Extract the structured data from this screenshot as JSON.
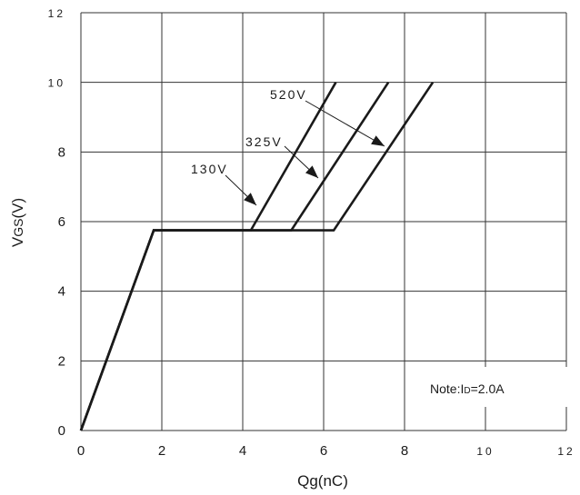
{
  "chart_data": {
    "type": "line",
    "xlabel": "Qg(nC)",
    "ylabel_main": "V",
    "ylabel_sub": "GS",
    "ylabel_tail": "(V)",
    "xlim": [
      0,
      12
    ],
    "ylim": [
      0,
      12
    ],
    "x_ticks": [
      "0",
      "2",
      "4",
      "6",
      "8",
      "10",
      "12"
    ],
    "y_ticks": [
      "0",
      "2",
      "4",
      "6",
      "8",
      "10",
      "12"
    ],
    "grid": true,
    "series": [
      {
        "name": "130V",
        "x": [
          0,
          1.8,
          4.2,
          6.3
        ],
        "y": [
          0,
          5.75,
          5.75,
          10
        ]
      },
      {
        "name": "325V",
        "x": [
          0,
          1.8,
          5.2,
          7.6
        ],
        "y": [
          0,
          5.75,
          5.75,
          10
        ]
      },
      {
        "name": "520V",
        "x": [
          0,
          1.8,
          6.25,
          8.7
        ],
        "y": [
          0,
          5.75,
          5.75,
          10
        ]
      }
    ],
    "annotations": [
      {
        "text": "130V",
        "target_series": "130V"
      },
      {
        "text": "325V",
        "target_series": "325V"
      },
      {
        "text": "520V",
        "target_series": "520V"
      }
    ],
    "note": {
      "prefix": "Note:I",
      "sub": "D",
      "suffix": "=2.0A"
    }
  }
}
